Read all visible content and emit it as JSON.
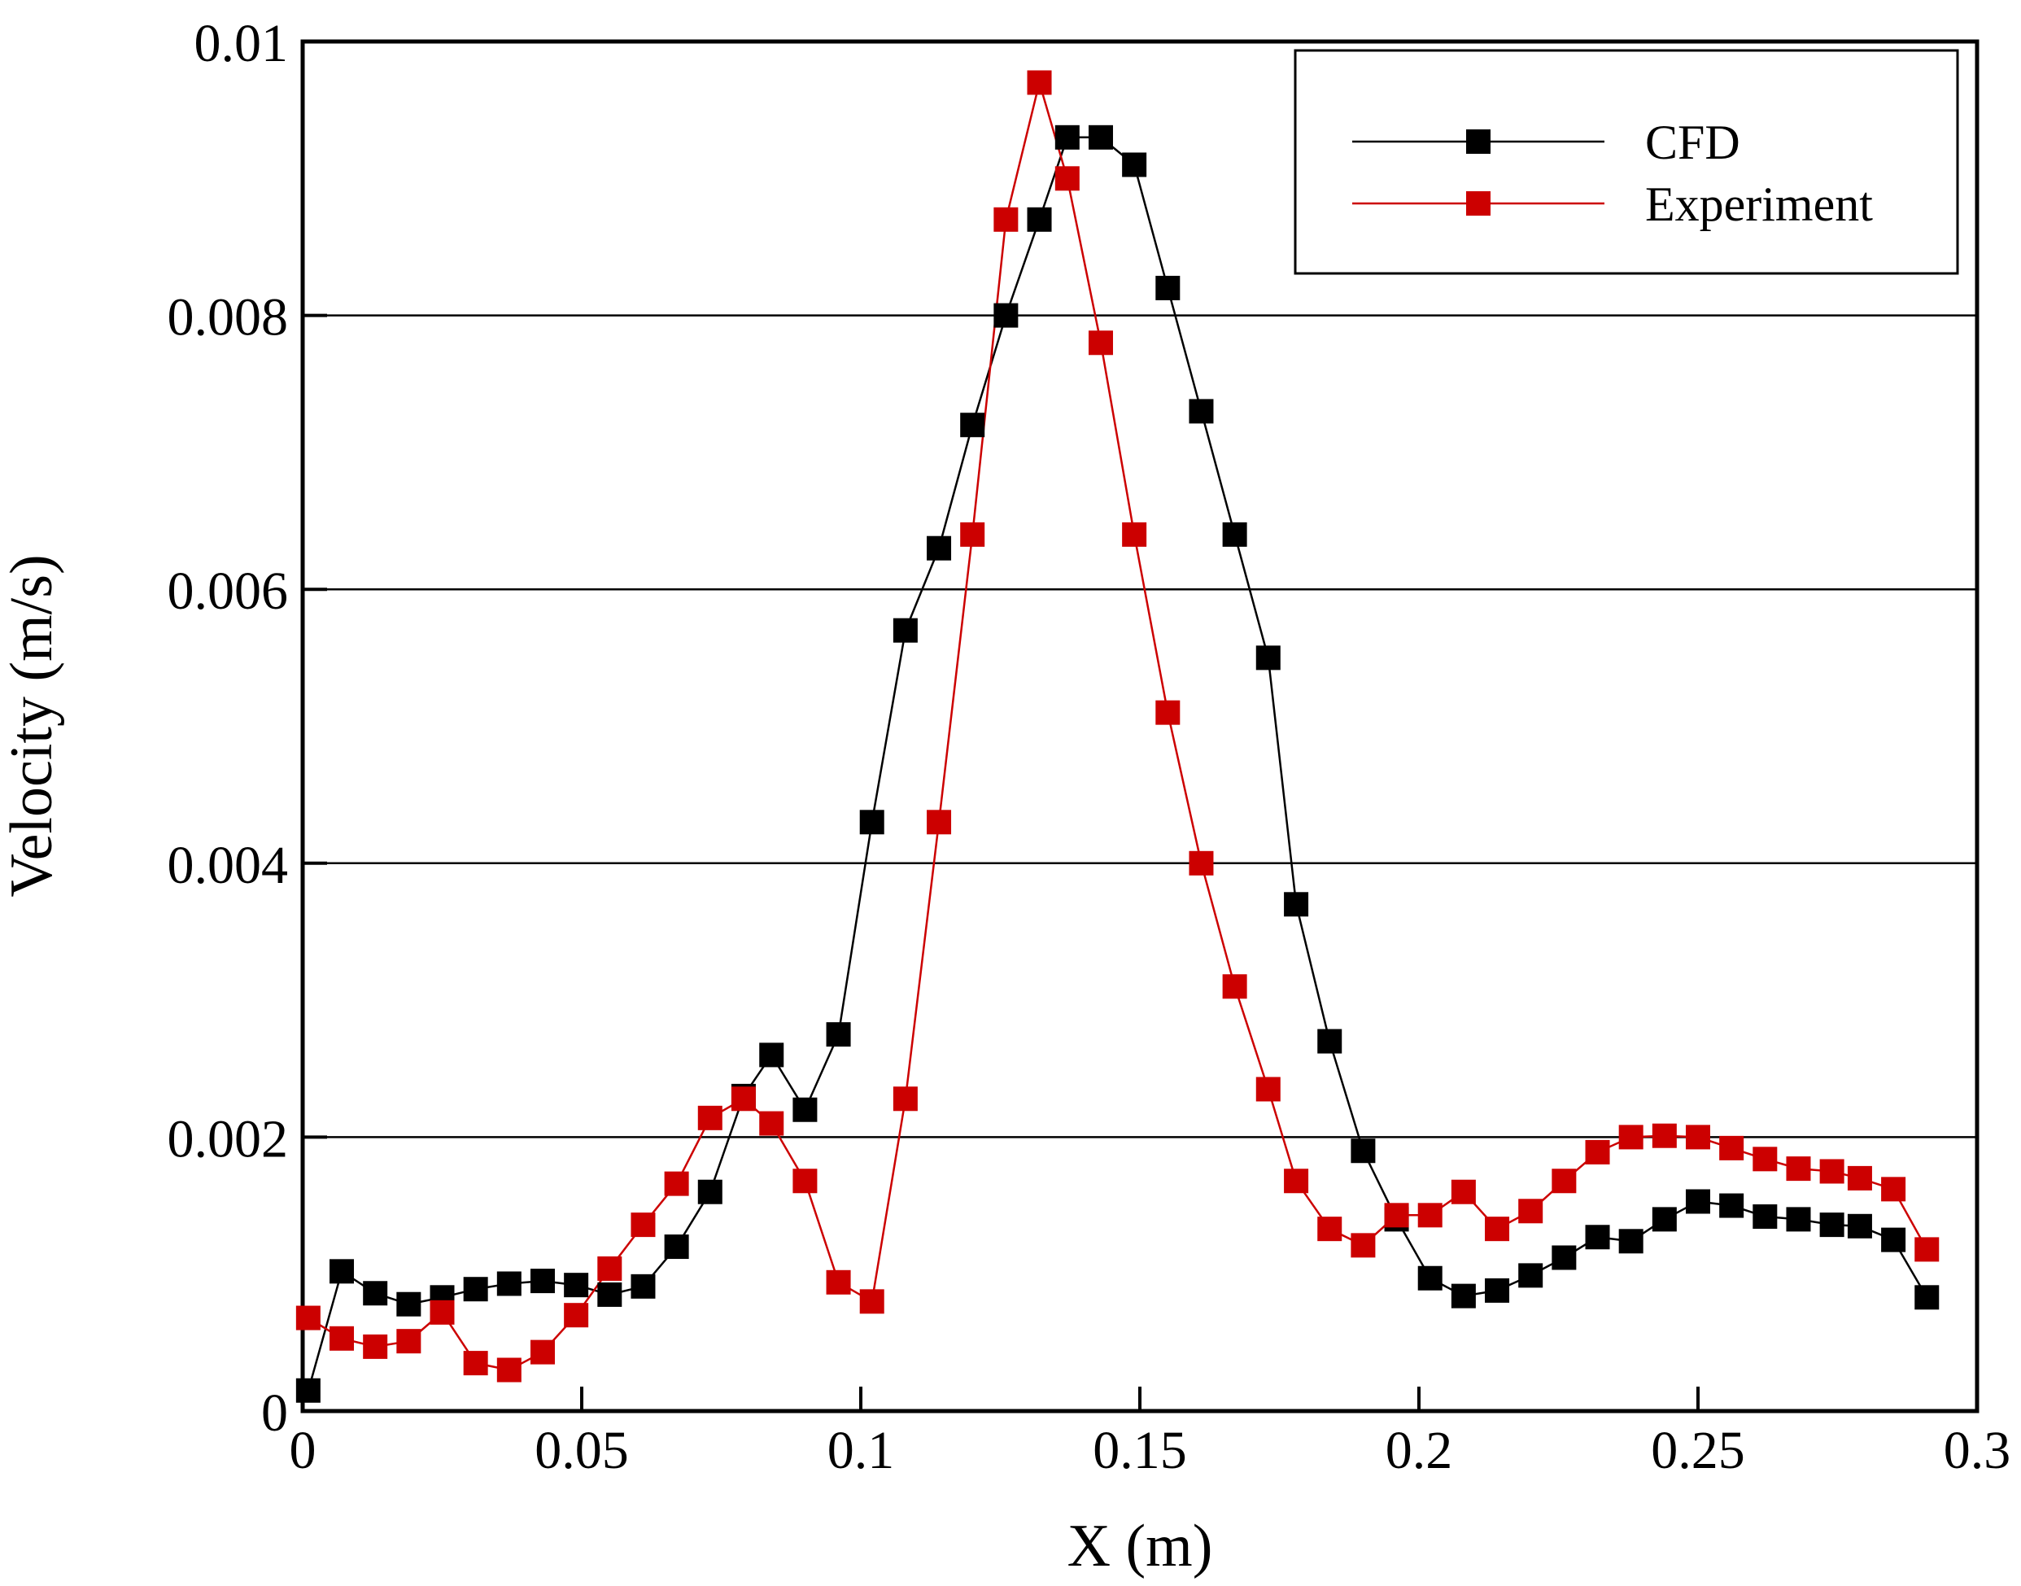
{
  "chart_data": {
    "type": "line",
    "title": "",
    "xlabel": "X (m)",
    "ylabel": "Velocity (m/s)",
    "xlim": [
      0,
      0.3
    ],
    "ylim": [
      0,
      0.01
    ],
    "grid": "horizontal",
    "legend_position": "top-right",
    "x_ticks": [
      {
        "value": 0,
        "label": "0"
      },
      {
        "value": 0.05,
        "label": "0.05"
      },
      {
        "value": 0.1,
        "label": "0.1"
      },
      {
        "value": 0.15,
        "label": "0.15"
      },
      {
        "value": 0.2,
        "label": "0.2"
      },
      {
        "value": 0.25,
        "label": "0.25"
      },
      {
        "value": 0.3,
        "label": "0.3"
      }
    ],
    "y_ticks": [
      {
        "value": 0,
        "label": "0"
      },
      {
        "value": 0.002,
        "label": "0.002"
      },
      {
        "value": 0.004,
        "label": "0.004"
      },
      {
        "value": 0.006,
        "label": "0.006"
      },
      {
        "value": 0.008,
        "label": "0.008"
      },
      {
        "value": 0.01,
        "label": "0.01"
      }
    ],
    "series": [
      {
        "name": "CFD",
        "color": "#000000",
        "x": [
          0.001,
          0.007,
          0.013,
          0.019,
          0.025,
          0.031,
          0.037,
          0.043,
          0.049,
          0.055,
          0.061,
          0.067,
          0.073,
          0.079,
          0.084,
          0.09,
          0.096,
          0.102,
          0.108,
          0.114,
          0.12,
          0.126,
          0.132,
          0.137,
          0.143,
          0.149,
          0.155,
          0.161,
          0.167,
          0.173,
          0.178,
          0.184,
          0.19,
          0.196,
          0.202,
          0.208,
          0.214,
          0.22,
          0.226,
          0.232,
          0.238,
          0.244,
          0.25,
          0.256,
          0.262,
          0.268,
          0.274,
          0.279,
          0.285,
          0.291
        ],
        "values": [
          0.00015,
          0.00102,
          0.00086,
          0.00078,
          0.00083,
          0.00089,
          0.00093,
          0.00095,
          0.00092,
          0.00085,
          0.00091,
          0.0012,
          0.0016,
          0.0023,
          0.0026,
          0.0022,
          0.00275,
          0.0043,
          0.0057,
          0.0063,
          0.0072,
          0.008,
          0.0087,
          0.0093,
          0.0093,
          0.0091,
          0.0082,
          0.0073,
          0.0064,
          0.0055,
          0.0037,
          0.0027,
          0.0019,
          0.0014,
          0.00097,
          0.00084,
          0.00088,
          0.00099,
          0.00112,
          0.00127,
          0.00124,
          0.0014,
          0.00153,
          0.0015,
          0.00142,
          0.0014,
          0.00136,
          0.00135,
          0.00125,
          0.00083
        ]
      },
      {
        "name": "Experiment",
        "color": "#cc0000",
        "x": [
          0.001,
          0.007,
          0.013,
          0.019,
          0.025,
          0.031,
          0.037,
          0.043,
          0.049,
          0.055,
          0.061,
          0.067,
          0.073,
          0.079,
          0.084,
          0.09,
          0.096,
          0.102,
          0.108,
          0.114,
          0.12,
          0.126,
          0.132,
          0.137,
          0.143,
          0.149,
          0.155,
          0.161,
          0.167,
          0.173,
          0.178,
          0.184,
          0.19,
          0.196,
          0.202,
          0.208,
          0.214,
          0.22,
          0.226,
          0.232,
          0.238,
          0.244,
          0.25,
          0.256,
          0.262,
          0.268,
          0.274,
          0.279,
          0.285,
          0.291
        ],
        "values": [
          0.00068,
          0.00053,
          0.00047,
          0.00051,
          0.00072,
          0.00035,
          0.0003,
          0.00043,
          0.0007,
          0.00104,
          0.00136,
          0.00166,
          0.00214,
          0.00228,
          0.0021,
          0.00168,
          0.00094,
          0.0008,
          0.00228,
          0.0043,
          0.0064,
          0.0087,
          0.0097,
          0.009,
          0.0078,
          0.0064,
          0.0051,
          0.004,
          0.0031,
          0.00235,
          0.00168,
          0.00133,
          0.00121,
          0.00143,
          0.00143,
          0.0016,
          0.00133,
          0.00146,
          0.00168,
          0.00189,
          0.002,
          0.00201,
          0.002,
          0.00192,
          0.00184,
          0.00177,
          0.00175,
          0.0017,
          0.00162,
          0.00118
        ]
      }
    ]
  }
}
